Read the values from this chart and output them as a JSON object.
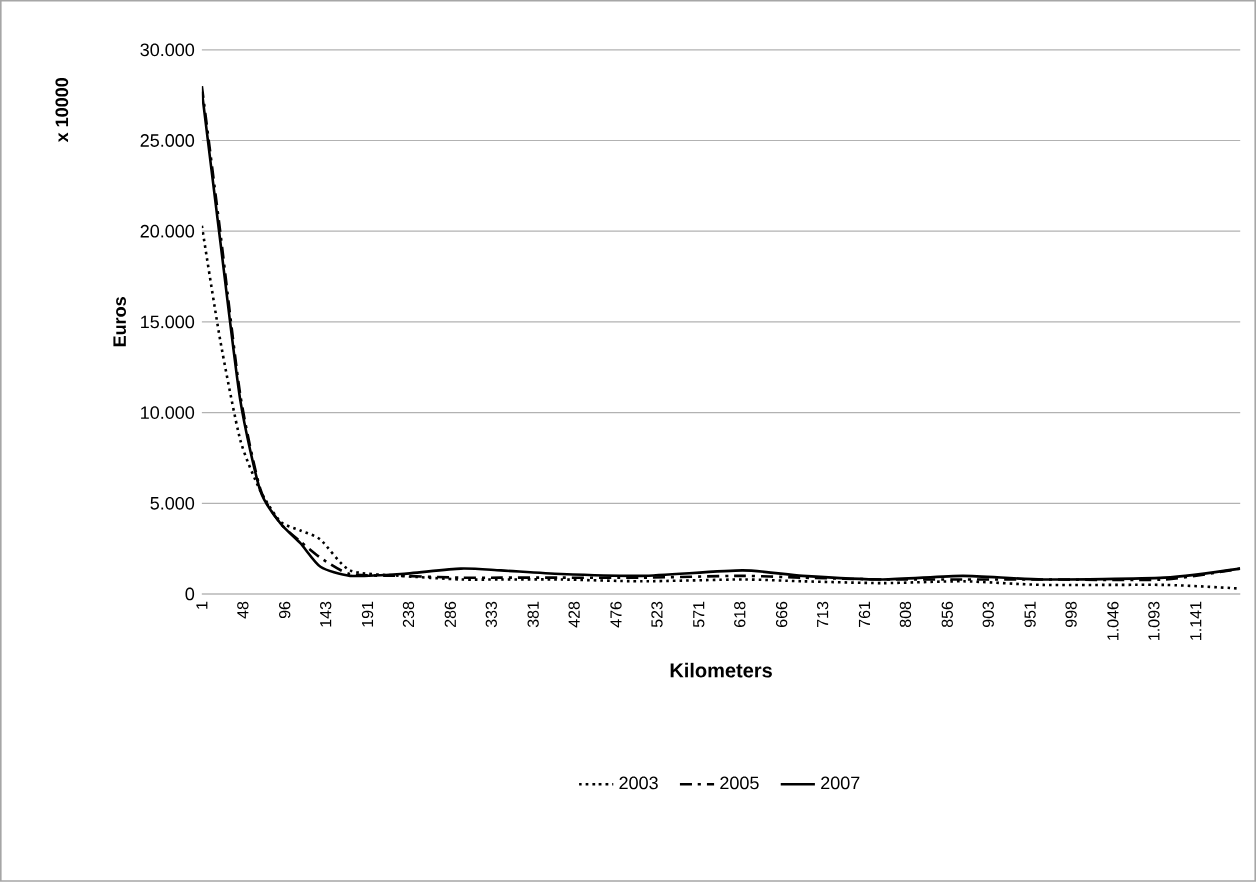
{
  "chart_data": {
    "type": "line",
    "xlabel": "Kilometers",
    "ylabel": "Euros",
    "annotations": [
      "x 10000"
    ],
    "xlim": [
      1,
      1192
    ],
    "ylim": [
      0,
      30000
    ],
    "xticks": [
      1,
      48,
      96,
      143,
      191,
      238,
      286,
      333,
      381,
      428,
      476,
      523,
      571,
      618,
      666,
      713,
      761,
      808,
      856,
      903,
      951,
      998,
      {
        "value": 1046,
        "label": "1.046"
      },
      {
        "value": 1093,
        "label": "1.093"
      },
      {
        "value": 1141,
        "label": "1.141"
      }
    ],
    "yticks": [
      0,
      {
        "value": 5000,
        "label": "5.000"
      },
      {
        "value": 10000,
        "label": "10.000"
      },
      {
        "value": 15000,
        "label": "15.000"
      },
      {
        "value": 20000,
        "label": "20.000"
      },
      {
        "value": 25000,
        "label": "25.000"
      },
      {
        "value": 30000,
        "label": "30.000"
      }
    ],
    "grid": "y",
    "legend": "bottom",
    "x": [
      1,
      22,
      45,
      68,
      91,
      114,
      137,
      171,
      229,
      298,
      344,
      413,
      506,
      621,
      690,
      782,
      874,
      966,
      1105,
      1192
    ],
    "series": [
      {
        "name": "2003",
        "color": "#000000",
        "line_style": "dotted",
        "values": [
          20300,
          14000,
          8500,
          5700,
          4000,
          3500,
          3000,
          1300,
          1000,
          800,
          800,
          800,
          700,
          800,
          700,
          600,
          700,
          500,
          500,
          300
        ]
      },
      {
        "name": "2005",
        "color": "#000000",
        "line_style": "dashed",
        "values": [
          28000,
          20000,
          11000,
          5800,
          3900,
          2900,
          2000,
          1100,
          1000,
          900,
          900,
          900,
          900,
          1000,
          900,
          800,
          800,
          800,
          800,
          1400
        ]
      },
      {
        "name": "2007",
        "color": "#000000",
        "line_style": "solid",
        "values": [
          27700,
          19500,
          10700,
          5700,
          3900,
          2800,
          1500,
          1000,
          1100,
          1400,
          1300,
          1100,
          1000,
          1300,
          1000,
          800,
          1000,
          800,
          900,
          1400
        ]
      }
    ]
  }
}
